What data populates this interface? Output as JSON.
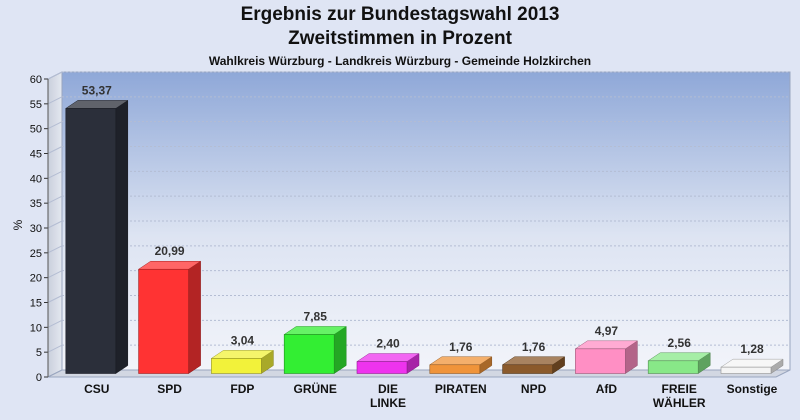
{
  "chart_data": {
    "type": "bar",
    "title": "Ergebnis zur Bundestagswahl 2013",
    "subtitle": "Zweitstimmen in Prozent",
    "subsubtitle": "Wahlkreis Würzburg - Landkreis Würzburg - Gemeinde Holzkirchen",
    "ylabel": "%",
    "xlabel": "",
    "ylim": [
      0,
      60
    ],
    "yticks": [
      0,
      5,
      10,
      15,
      20,
      25,
      30,
      35,
      40,
      45,
      50,
      55,
      60
    ],
    "grid": true,
    "categories": [
      "CSU",
      "SPD",
      "FDP",
      "GRÜNE",
      "DIE LINKE",
      "PIRATEN",
      "NPD",
      "AfD",
      "FREIE WÄHLER",
      "Sonstige"
    ],
    "category_lines": [
      [
        "CSU"
      ],
      [
        "SPD"
      ],
      [
        "FDP"
      ],
      [
        "GRÜNE"
      ],
      [
        "DIE",
        "LINKE"
      ],
      [
        "PIRATEN"
      ],
      [
        "NPD"
      ],
      [
        "AfD"
      ],
      [
        "FREIE",
        "WÄHLER"
      ],
      [
        "Sonstige"
      ]
    ],
    "values": [
      53.37,
      20.99,
      3.04,
      7.85,
      2.4,
      1.76,
      1.76,
      4.97,
      2.56,
      1.28
    ],
    "value_labels": [
      "53,37",
      "20,99",
      "3,04",
      "7,85",
      "2,40",
      "1,76",
      "1,76",
      "4,97",
      "2,56",
      "1,28"
    ],
    "colors": [
      "#2b2f3a",
      "#ff3333",
      "#f2f23a",
      "#33ee33",
      "#ee33ee",
      "#f0943a",
      "#8b5a2b",
      "#ff8fc4",
      "#88e888",
      "#f4f4f4"
    ]
  }
}
